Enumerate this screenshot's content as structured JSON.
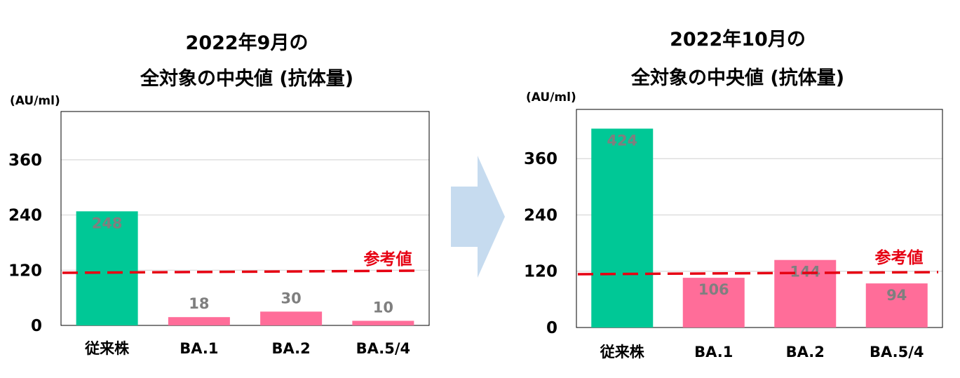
{
  "colors": {
    "conventional": "#00c896",
    "omicron": "#ff6d99",
    "reference_line": "#e60012",
    "arrow": "#c6dbef"
  },
  "chart_data": [
    {
      "type": "bar",
      "title_line1": "2022年9月の",
      "title_line2": "全対象の中央値 (抗体量)",
      "unit": "(AU/ml)",
      "categories": [
        "従来株",
        "BA.1",
        "BA.2",
        "BA.5/4"
      ],
      "values": [
        248,
        18,
        30,
        10
      ],
      "value_labels": [
        "248",
        "18",
        "30",
        "10"
      ],
      "yticks": [
        "0",
        "120",
        "240",
        "360"
      ],
      "ylim": [
        0,
        465
      ],
      "reference": {
        "label": "参考値",
        "value": 118
      },
      "grid": true
    },
    {
      "type": "bar",
      "title_line1": "2022年10月の",
      "title_line2": "全対象の中央値 (抗体量)",
      "unit": "(AU/ml)",
      "categories": [
        "従来株",
        "BA.1",
        "BA.2",
        "BA.5/4"
      ],
      "values": [
        424,
        106,
        144,
        94
      ],
      "value_labels": [
        "424",
        "106",
        "144",
        "94"
      ],
      "yticks": [
        "0",
        "120",
        "240",
        "360"
      ],
      "ylim": [
        0,
        465
      ],
      "reference": {
        "label": "参考値",
        "value": 118
      },
      "grid": true
    }
  ]
}
